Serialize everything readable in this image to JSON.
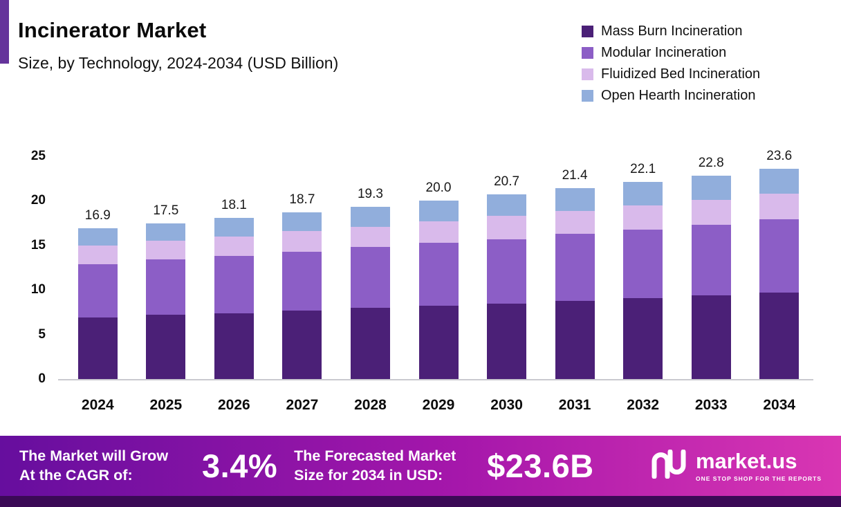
{
  "chart_data": {
    "type": "bar",
    "stacked": true,
    "title": "Incinerator Market",
    "subtitle": "Size, by Technology, 2024-2034 (USD Billion)",
    "categories": [
      "2024",
      "2025",
      "2026",
      "2027",
      "2028",
      "2029",
      "2030",
      "2031",
      "2032",
      "2033",
      "2034"
    ],
    "series": [
      {
        "name": "Mass Burn Incineration",
        "color": "#4B2077",
        "values": [
          6.9,
          7.2,
          7.4,
          7.7,
          8.0,
          8.2,
          8.5,
          8.8,
          9.1,
          9.4,
          9.7
        ]
      },
      {
        "name": "Modular Incineration",
        "color": "#8C5EC6",
        "values": [
          6.0,
          6.2,
          6.4,
          6.6,
          6.8,
          7.1,
          7.2,
          7.5,
          7.7,
          7.9,
          8.2
        ]
      },
      {
        "name": "Fluidized Bed Incineration",
        "color": "#D9BAEB",
        "values": [
          2.1,
          2.1,
          2.2,
          2.3,
          2.3,
          2.4,
          2.6,
          2.6,
          2.7,
          2.8,
          2.9
        ]
      },
      {
        "name": "Open Hearth Incineration",
        "color": "#91AEDC",
        "values": [
          1.9,
          2.0,
          2.1,
          2.1,
          2.2,
          2.3,
          2.4,
          2.5,
          2.6,
          2.7,
          2.8
        ]
      }
    ],
    "totals": [
      "16.9",
      "17.5",
      "18.1",
      "18.7",
      "19.3",
      "20.0",
      "20.7",
      "21.4",
      "22.1",
      "22.8",
      "23.6"
    ],
    "yticks": [
      0,
      5,
      10,
      15,
      20,
      25
    ],
    "ylim": [
      0,
      25
    ],
    "grid": false,
    "legend_position": "top-right"
  },
  "banner": {
    "cagr_label": "The Market will Grow At the CAGR of:",
    "cagr_value": "3.4%",
    "forecast_label": "The Forecasted Market Size for 2034 in USD:",
    "forecast_value": "$23.6B",
    "brand": "market.us",
    "brand_tagline": "ONE STOP SHOP FOR THE REPORTS"
  }
}
